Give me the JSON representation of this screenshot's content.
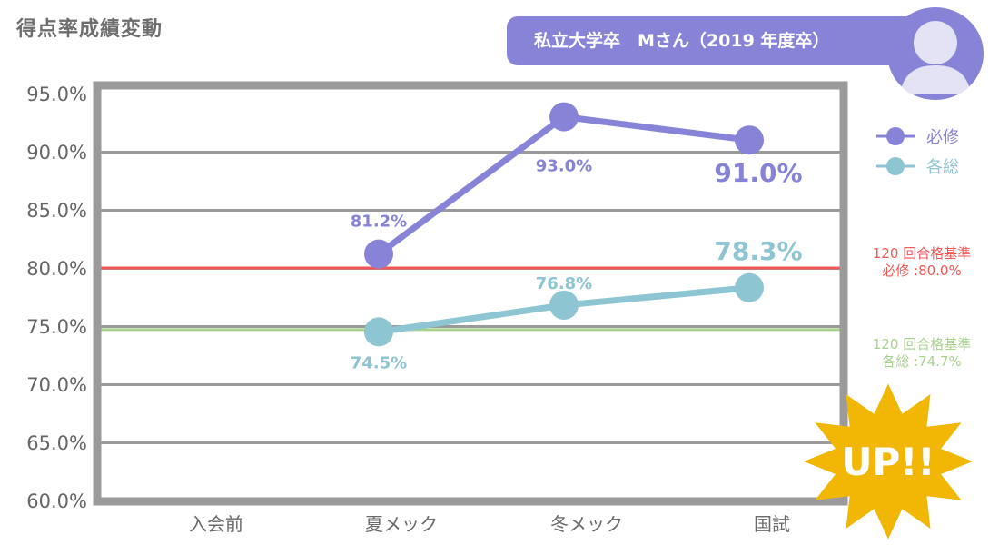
{
  "title": "得点率成績変動",
  "profile": {
    "label": "私立大学卒　Mさん（2019 年度卒）",
    "avatar_icon": "user-avatar-icon"
  },
  "colors": {
    "required": "#8784d8",
    "general": "#8ec5d2",
    "ref_required": "#f25757",
    "ref_general": "#a8d38e",
    "grid": "#9a9a9a",
    "badge": "#f2b705"
  },
  "badge": {
    "label": "UP!!",
    "icon": "starburst-icon"
  },
  "chart_data": {
    "type": "line",
    "title": "得点率成績変動",
    "xlabel": "",
    "ylabel": "",
    "categories": [
      "入会前",
      "夏メック",
      "冬メック",
      "国試"
    ],
    "ylim": [
      60,
      95
    ],
    "yticks": [
      60,
      65,
      70,
      75,
      80,
      85,
      90,
      95
    ],
    "ytick_labels": [
      "60.0%",
      "65.0%",
      "70.0%",
      "75.0%",
      "80.0%",
      "85.0%",
      "90.0%",
      "95.0%"
    ],
    "grid": true,
    "legend_position": "right",
    "series": [
      {
        "name": "必修",
        "color_key": "required",
        "values": [
          null,
          81.2,
          93.0,
          91.0
        ],
        "labels": [
          null,
          "81.2%",
          "93.0%",
          "91.0%"
        ]
      },
      {
        "name": "各総",
        "color_key": "general",
        "values": [
          null,
          74.5,
          76.8,
          78.3
        ],
        "labels": [
          null,
          "74.5%",
          "76.8%",
          "78.3%"
        ]
      }
    ],
    "reference_lines": [
      {
        "name": "必修合格基準",
        "value": 80.0,
        "color_key": "ref_required",
        "label_line1": "120 回合格基準",
        "label_line2": "必修 :80.0%"
      },
      {
        "name": "各総合格基準",
        "value": 74.7,
        "color_key": "ref_general",
        "label_line1": "120 回合格基準",
        "label_line2": "各総 :74.7%"
      }
    ]
  }
}
